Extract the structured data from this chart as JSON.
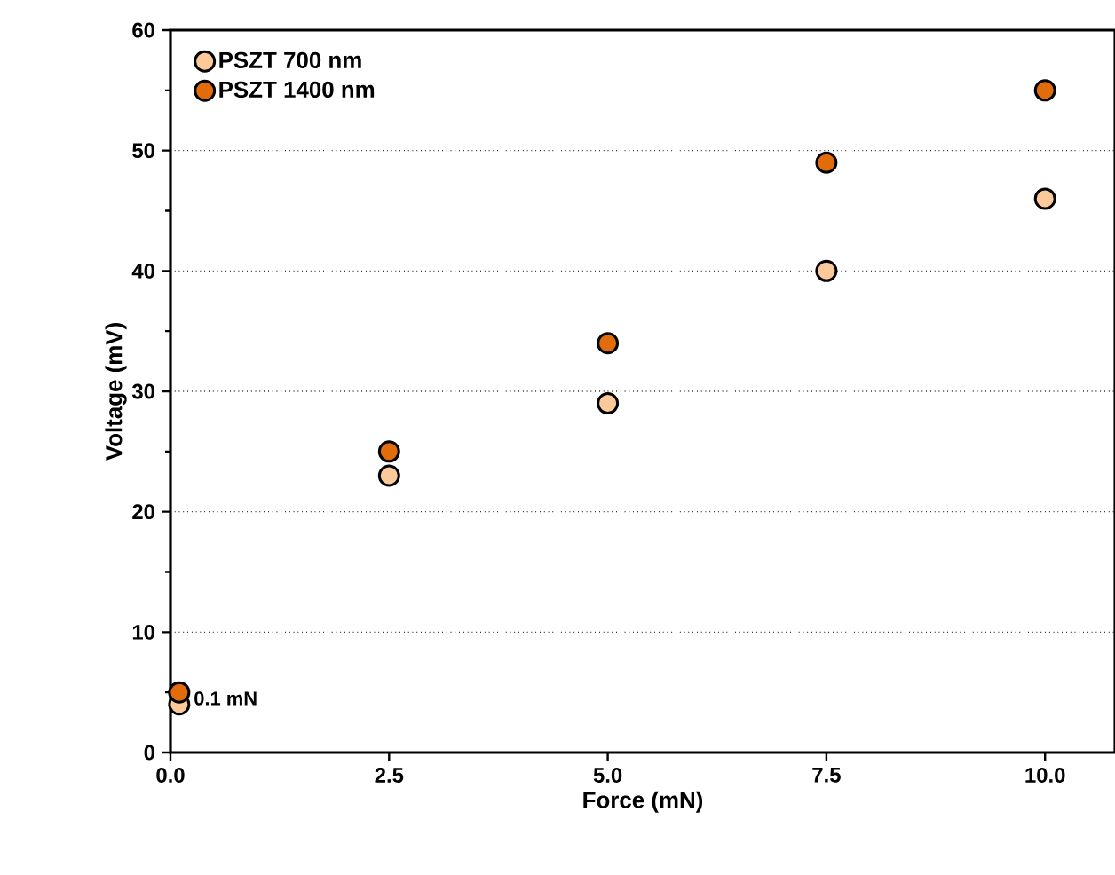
{
  "chart_data": {
    "type": "scatter",
    "xlabel": "Force (mN)",
    "ylabel": "Voltage (mV)",
    "x": [
      0.1,
      2.5,
      5.0,
      7.5,
      10.0
    ],
    "series": [
      {
        "name": "PSZT   700 nm",
        "color": "#fbc99a",
        "values": [
          4,
          23,
          29,
          40,
          46
        ]
      },
      {
        "name": "PSZT 1400 nm",
        "color": "#e36c0a",
        "values": [
          5,
          25,
          34,
          49,
          55
        ]
      }
    ],
    "xlim": [
      0,
      10.8
    ],
    "xticks": [
      {
        "value": 0,
        "label": "0.0"
      },
      2.5,
      {
        "value": 5,
        "label": "5.0"
      },
      7.5,
      {
        "value": 10,
        "label": "10.0"
      }
    ],
    "ylim": [
      0,
      60
    ],
    "yticks": [
      0,
      10,
      20,
      30,
      40,
      50,
      60
    ],
    "grid": "y",
    "legend": "top left",
    "marker": "circle",
    "annotations": [
      {
        "text": "0.1 mN",
        "x": 0.1,
        "y": 4.5
      }
    ]
  }
}
